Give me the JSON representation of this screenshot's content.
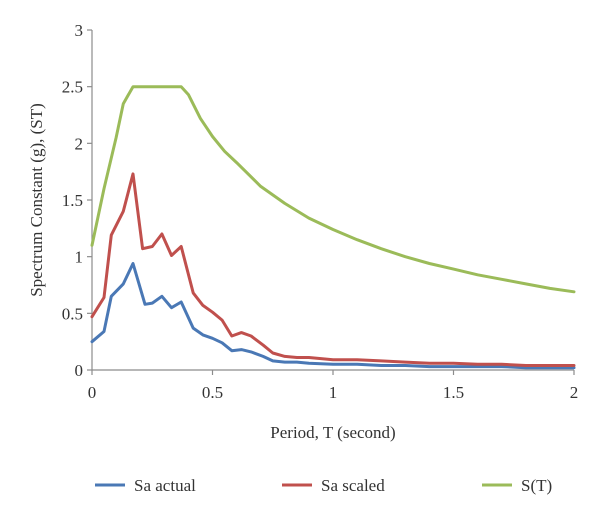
{
  "chart_data": {
    "type": "line",
    "title": "",
    "xlabel": "Period, T (second)",
    "ylabel": "Spectrum Constant (g), (ST)",
    "xlim": [
      0,
      2
    ],
    "ylim": [
      0,
      3
    ],
    "x_ticks": [
      "0",
      "0.5",
      "1",
      "1.5",
      "2"
    ],
    "y_ticks": [
      "0",
      "0.5",
      "1",
      "1.5",
      "2",
      "2.5",
      "3"
    ],
    "grid": false,
    "legend_position": "bottom",
    "series": [
      {
        "name": "Sa actual",
        "color": "#4a78b5",
        "x": [
          0,
          0.05,
          0.08,
          0.13,
          0.17,
          0.22,
          0.25,
          0.29,
          0.33,
          0.37,
          0.42,
          0.46,
          0.5,
          0.54,
          0.58,
          0.62,
          0.66,
          0.71,
          0.75,
          0.8,
          0.85,
          0.9,
          1.0,
          1.1,
          1.2,
          1.3,
          1.4,
          1.5,
          1.6,
          1.7,
          1.8,
          2.0
        ],
        "y": [
          0.25,
          0.34,
          0.65,
          0.76,
          0.94,
          0.58,
          0.59,
          0.65,
          0.55,
          0.6,
          0.37,
          0.31,
          0.28,
          0.24,
          0.17,
          0.18,
          0.16,
          0.12,
          0.08,
          0.07,
          0.07,
          0.06,
          0.05,
          0.05,
          0.04,
          0.04,
          0.03,
          0.03,
          0.03,
          0.03,
          0.02,
          0.02
        ]
      },
      {
        "name": "Sa scaled",
        "color": "#c0504d",
        "x": [
          0,
          0.05,
          0.08,
          0.13,
          0.17,
          0.21,
          0.25,
          0.29,
          0.33,
          0.37,
          0.42,
          0.46,
          0.5,
          0.54,
          0.58,
          0.62,
          0.66,
          0.71,
          0.75,
          0.8,
          0.85,
          0.9,
          1.0,
          1.1,
          1.2,
          1.3,
          1.4,
          1.5,
          1.6,
          1.7,
          1.8,
          2.0
        ],
        "y": [
          0.47,
          0.64,
          1.19,
          1.4,
          1.73,
          1.07,
          1.09,
          1.2,
          1.01,
          1.09,
          0.68,
          0.57,
          0.51,
          0.44,
          0.3,
          0.33,
          0.3,
          0.22,
          0.15,
          0.12,
          0.11,
          0.11,
          0.09,
          0.09,
          0.08,
          0.07,
          0.06,
          0.06,
          0.05,
          0.05,
          0.04,
          0.04
        ]
      },
      {
        "name": "S(T)",
        "color": "#9bbb59",
        "x": [
          0,
          0.05,
          0.1,
          0.13,
          0.17,
          0.2,
          0.25,
          0.3,
          0.35,
          0.37,
          0.4,
          0.45,
          0.5,
          0.55,
          0.6,
          0.7,
          0.8,
          0.9,
          1.0,
          1.1,
          1.2,
          1.3,
          1.4,
          1.5,
          1.6,
          1.7,
          1.8,
          1.9,
          2.0
        ],
        "y": [
          1.1,
          1.6,
          2.05,
          2.35,
          2.5,
          2.5,
          2.5,
          2.5,
          2.5,
          2.5,
          2.43,
          2.22,
          2.06,
          1.93,
          1.83,
          1.62,
          1.47,
          1.34,
          1.24,
          1.15,
          1.07,
          1.0,
          0.94,
          0.89,
          0.84,
          0.8,
          0.76,
          0.72,
          0.69
        ]
      }
    ]
  }
}
